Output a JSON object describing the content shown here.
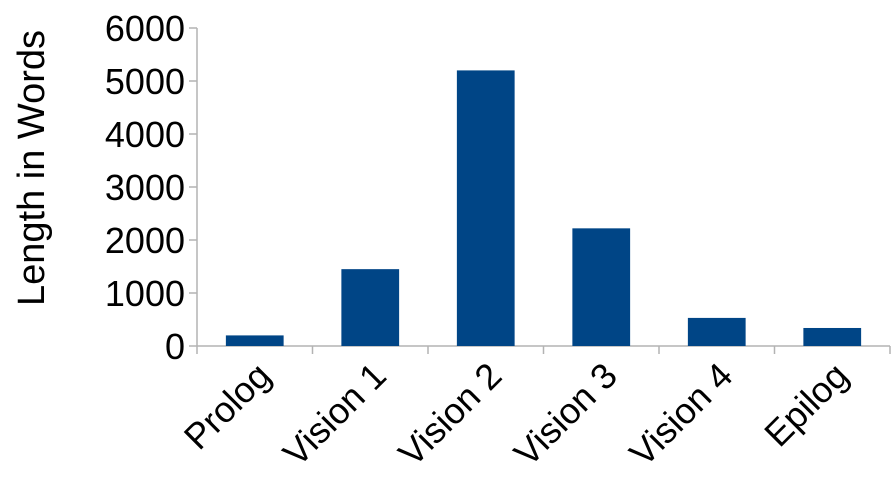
{
  "chart_data": {
    "type": "bar",
    "title": "",
    "xlabel": "",
    "ylabel": "Length in Words",
    "categories": [
      "Prolog",
      "Vision 1",
      "Vision 2",
      "Vision 3",
      "Vision 4",
      "Epilog"
    ],
    "values": [
      200,
      1450,
      5200,
      2220,
      530,
      340
    ],
    "ylim": [
      0,
      6000
    ],
    "yticks": [
      "0",
      "1000",
      "2000",
      "3000",
      "4000",
      "5000",
      "6000"
    ],
    "grid": false,
    "legend": "none",
    "bar_color": "#004586",
    "axis_color": "#b3b3b3"
  }
}
